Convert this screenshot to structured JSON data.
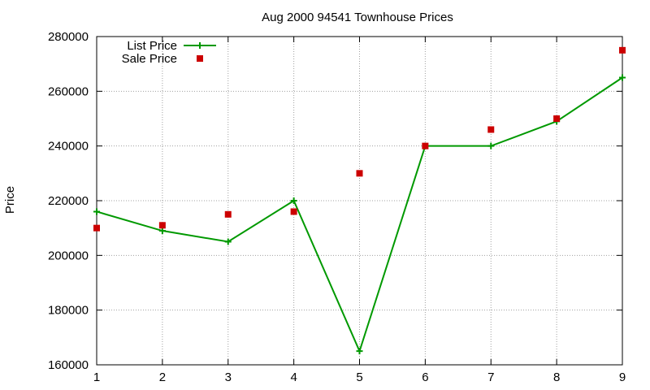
{
  "chart_data": {
    "type": "line",
    "title": "Aug 2000 94541 Townhouse Prices",
    "xlabel": "",
    "ylabel": "Price",
    "x": [
      1,
      2,
      3,
      4,
      5,
      6,
      7,
      8,
      9
    ],
    "xlim": [
      1,
      9
    ],
    "ylim": [
      160000,
      280000
    ],
    "xticks": [
      "1",
      "2",
      "3",
      "4",
      "5",
      "6",
      "7",
      "8",
      "9"
    ],
    "yticks": [
      "160000",
      "180000",
      "200000",
      "220000",
      "240000",
      "260000",
      "280000"
    ],
    "grid": true,
    "legend_position": "top-left",
    "series": [
      {
        "name": "List Price",
        "style": "line-with-plus-markers",
        "color": "#009900",
        "values": [
          216000,
          209000,
          205000,
          220000,
          165000,
          240000,
          240000,
          249000,
          265000
        ]
      },
      {
        "name": "Sale Price",
        "style": "square-markers",
        "color": "#cc0000",
        "values": [
          210000,
          211000,
          215000,
          216000,
          230000,
          240000,
          246000,
          250000,
          275000
        ]
      }
    ]
  }
}
